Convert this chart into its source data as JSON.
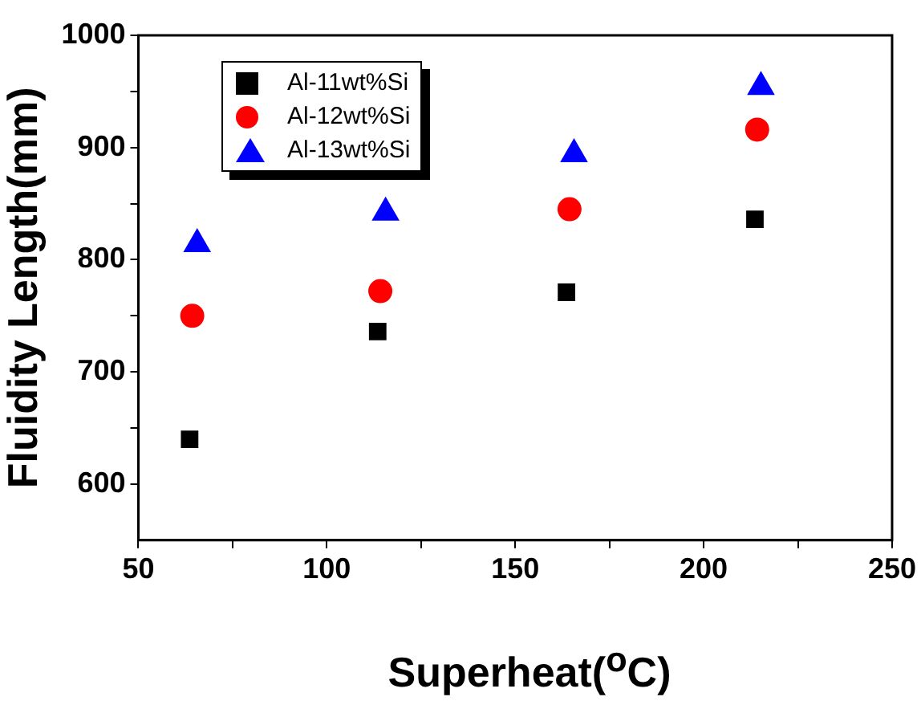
{
  "chart_data": {
    "type": "scatter",
    "xlabel": "Superheat($^{o}$C)",
    "ylabel": "Fluidity Length(mm)",
    "xlim": [
      50,
      250
    ],
    "xticks": [
      50,
      {
        "value": 75,
        "label": null
      },
      100,
      {
        "value": 125,
        "label": null
      },
      150,
      {
        "value": 175,
        "label": null
      },
      200,
      {
        "value": 225,
        "label": null
      },
      250
    ],
    "ylim": [
      550,
      1000
    ],
    "yticks": [
      600,
      {
        "value": 650,
        "label": null
      },
      700,
      {
        "value": 750,
        "label": null
      },
      800,
      {
        "value": 850,
        "label": null
      },
      900,
      {
        "value": 950,
        "label": null
      },
      1000
    ],
    "grid": false,
    "legend": "top left",
    "series": [
      {
        "name": "Al-11wt%Si",
        "color": "#000000",
        "marker": "square",
        "x": [
          63.6,
          113.5,
          163.6,
          213.6
        ],
        "values": [
          640,
          736,
          771,
          836
        ]
      },
      {
        "name": "Al-12wt%Si",
        "color": "#ff0000",
        "marker": "circle",
        "x": [
          64.3,
          114.2,
          164.4,
          214.2
        ],
        "values": [
          750,
          772,
          845,
          916
        ]
      },
      {
        "name": "Al-13wt%Si",
        "color": "#0000ff",
        "marker": "triangle",
        "x": [
          65.6,
          115.6,
          165.6,
          215.2
        ],
        "values": [
          814,
          842,
          894,
          954
        ]
      }
    ]
  }
}
